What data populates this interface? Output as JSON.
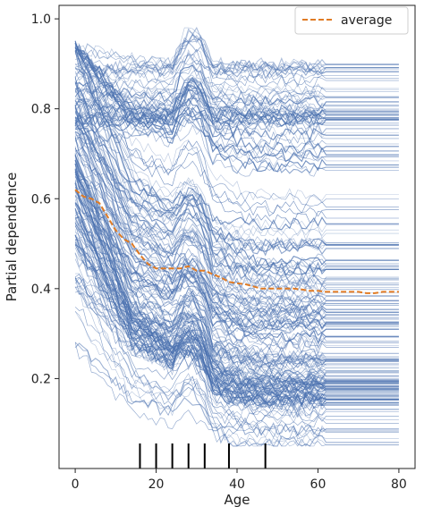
{
  "chart_data": {
    "type": "line",
    "xlabel": "Age",
    "ylabel": "Partial dependence",
    "xlim": [
      -4,
      84
    ],
    "ylim": [
      0.0,
      1.03
    ],
    "xticks": [
      0,
      20,
      40,
      60,
      80
    ],
    "yticks": [
      0.2,
      0.4,
      0.6,
      0.8,
      1.0
    ],
    "xtick_labels": [
      "0",
      "20",
      "40",
      "60",
      "80"
    ],
    "ytick_labels": [
      "0.2",
      "0.4",
      "0.6",
      "0.8",
      "1.0"
    ],
    "legend": {
      "position": "top-right",
      "entries": [
        "average"
      ]
    },
    "grid": false,
    "colors": {
      "ice": "#4c72b0",
      "average": "#e07b24",
      "rug": "#000000"
    },
    "average_series": {
      "name": "average",
      "x": [
        0,
        2,
        4,
        6,
        8,
        10,
        12,
        14,
        16,
        18,
        20,
        22,
        24,
        26,
        28,
        30,
        32,
        34,
        36,
        38,
        40,
        42,
        44,
        46,
        48,
        50,
        52,
        54,
        56,
        58,
        60,
        62,
        64,
        66,
        68,
        70,
        72,
        74,
        76,
        78,
        80
      ],
      "y": [
        0.62,
        0.605,
        0.6,
        0.59,
        0.56,
        0.53,
        0.51,
        0.5,
        0.475,
        0.455,
        0.445,
        0.445,
        0.445,
        0.445,
        0.45,
        0.44,
        0.44,
        0.432,
        0.425,
        0.415,
        0.412,
        0.41,
        0.405,
        0.4,
        0.4,
        0.4,
        0.4,
        0.4,
        0.398,
        0.395,
        0.395,
        0.393,
        0.393,
        0.393,
        0.393,
        0.393,
        0.39,
        0.39,
        0.393,
        0.393,
        0.393
      ]
    },
    "rug_x": [
      16,
      20,
      24,
      28,
      32,
      38,
      47
    ],
    "ice_lines": {
      "count": 210,
      "x_range": [
        0,
        80
      ],
      "y_range": [
        0.05,
        0.98
      ],
      "flat_after_x": 62
    }
  }
}
